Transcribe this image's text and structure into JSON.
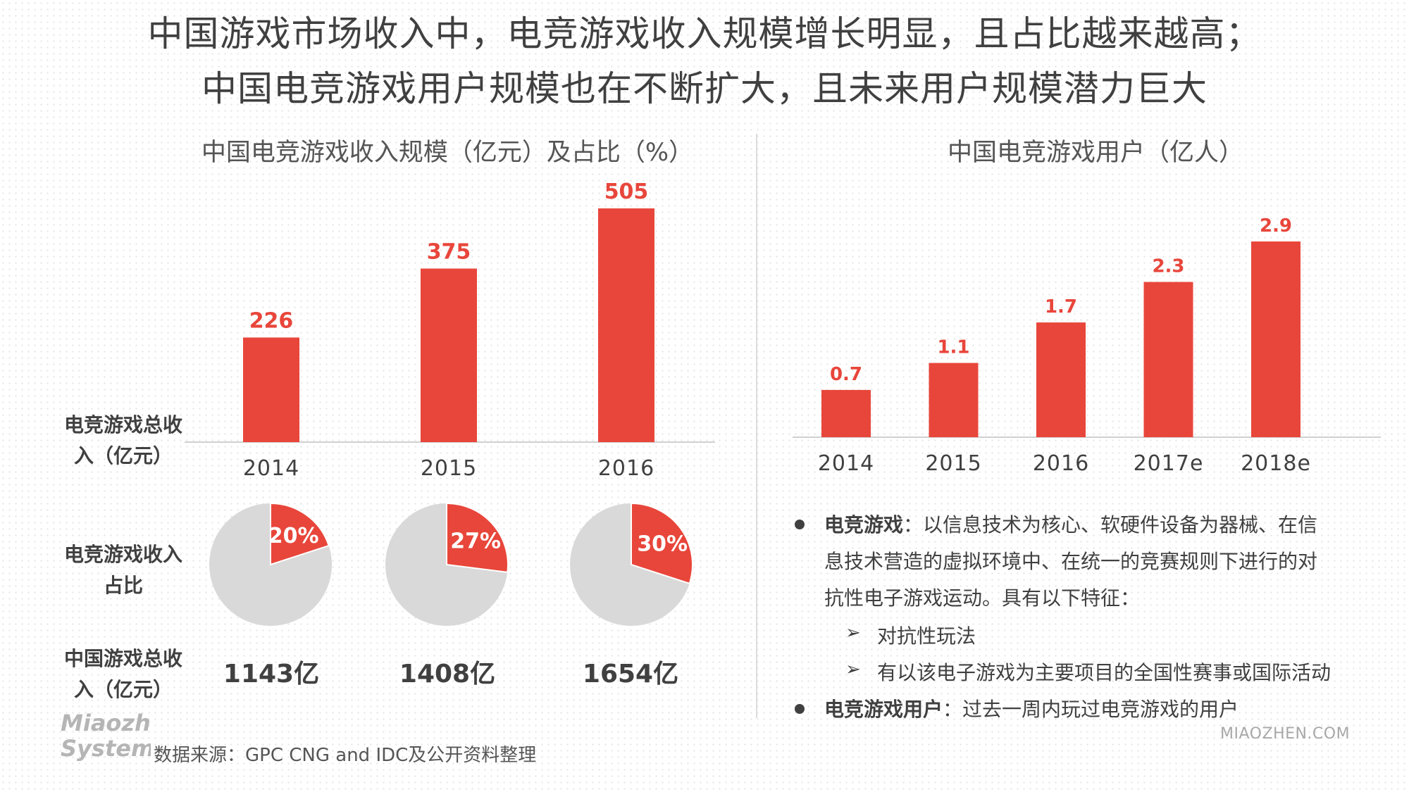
{
  "headline": {
    "line1": "中国游戏市场收入中，电竞游戏收入规模增长明显，且占比越来越高；",
    "line2": "中国电竞游戏用户规模也在不断扩大，且未来用户规模潜力巨大"
  },
  "left_panel": {
    "title": "中国电竞游戏收入规模（亿元）及占比（%）",
    "row_labels": {
      "revenue": [
        "电竞游戏总收",
        "入（亿元）"
      ],
      "share": [
        "电竞游戏收入",
        "占比"
      ],
      "total": [
        "中国游戏总收",
        "入（亿元）"
      ]
    },
    "totals": [
      "1143亿",
      "1408亿",
      "1654亿"
    ]
  },
  "right_panel": {
    "title": "中国电竞游戏用户（亿人）",
    "bullets": [
      {
        "term": "电竞游戏",
        "lines": [
          "：以信息技术为核心、软硬件设备为器械、在信",
          "息技术营造的虚拟环境中、在统一的竞赛规则下进行的对",
          "抗性电子游戏运动。具有以下特征："
        ],
        "subs": [
          "对抗性玩法",
          "有以该电子游戏为主要项目的全国性赛事或国际活动"
        ]
      },
      {
        "term": "电竞游戏用户",
        "lines": [
          "：过去一周内玩过电竞游戏的用户"
        ]
      }
    ],
    "arrow_glyph": "➢"
  },
  "footer": {
    "source": "数据来源：GPC CNG and IDC及公开资料整理",
    "site": "MIAOZHEN.COM",
    "logo_lines": [
      "Miaozhen",
      "Systems"
    ]
  },
  "colors": {
    "bar": "#e8463b",
    "pie_rest": "#d9d9d9",
    "label": "#e8463b",
    "axis": "#d0d0d0"
  },
  "chart_data": [
    {
      "type": "bar",
      "title": "中国电竞游戏收入规模（亿元）及占比（%）",
      "categories": [
        "2014",
        "2015",
        "2016"
      ],
      "values": [
        226,
        375,
        505
      ],
      "data_labels": [
        "226",
        "375",
        "505"
      ],
      "ylabel": "电竞游戏总收入（亿元）",
      "ylim": [
        0,
        505
      ],
      "grid": false
    },
    {
      "type": "pie",
      "title": "电竞游戏收入占比",
      "categories": [
        "2014",
        "2015",
        "2016"
      ],
      "values": [
        20,
        27,
        30
      ],
      "data_labels": [
        "20%",
        "27%",
        "30%"
      ]
    },
    {
      "type": "bar",
      "title": "中国电竞游戏用户（亿人）",
      "categories": [
        "2014",
        "2015",
        "2016",
        "2017e",
        "2018e"
      ],
      "values": [
        0.7,
        1.1,
        1.7,
        2.3,
        2.9
      ],
      "data_labels": [
        "0.7",
        "1.1",
        "1.7",
        "2.3",
        "2.9"
      ],
      "ylim": [
        0,
        2.9
      ],
      "grid": false
    }
  ]
}
